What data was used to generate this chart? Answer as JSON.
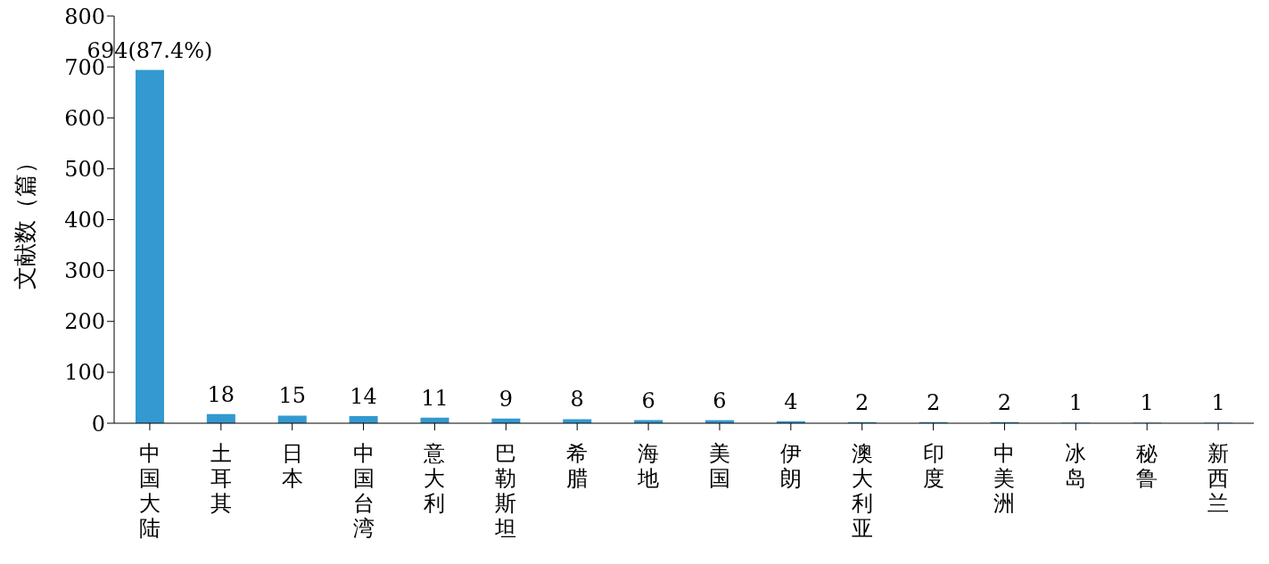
{
  "chart_data": {
    "type": "bar",
    "ylabel": "文献数（篇）",
    "categories": [
      "中国大陆",
      "土耳其",
      "日本",
      "中国台湾",
      "意大利",
      "巴勒斯坦",
      "希腊",
      "海地",
      "美国",
      "伊朗",
      "澳大利亚",
      "印度",
      "中美洲",
      "冰岛",
      "秘鲁",
      "新西兰"
    ],
    "values": [
      694,
      18,
      15,
      14,
      11,
      9,
      8,
      6,
      6,
      4,
      2,
      2,
      2,
      1,
      1,
      1
    ],
    "value_labels": [
      "694(87.4%)",
      "18",
      "15",
      "14",
      "11",
      "9",
      "8",
      "6",
      "6",
      "4",
      "2",
      "2",
      "2",
      "1",
      "1",
      "1"
    ],
    "color": "#3399d0",
    "ylim": [
      0,
      800
    ],
    "yticks": [
      0,
      100,
      200,
      300,
      400,
      500,
      600,
      700,
      800
    ],
    "grid": false,
    "legend": false
  }
}
